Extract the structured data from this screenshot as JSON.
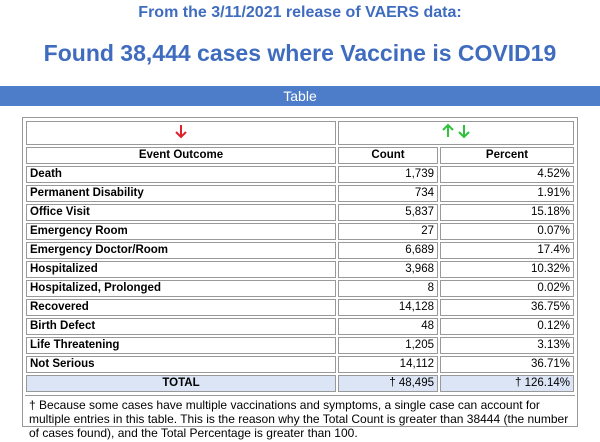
{
  "header": {
    "release": "From the 3/11/2021 release of VAERS data:",
    "title": "Found 38,444 cases where Vaccine is COVID19"
  },
  "section": "Table",
  "table": {
    "columns": [
      "Event Outcome",
      "Count",
      "Percent"
    ],
    "rows": [
      [
        "Death",
        "1,739",
        "4.52%"
      ],
      [
        "Permanent Disability",
        "734",
        "1.91%"
      ],
      [
        "Office Visit",
        "5,837",
        "15.18%"
      ],
      [
        "Emergency Room",
        "27",
        "0.07%"
      ],
      [
        "Emergency Doctor/Room",
        "6,689",
        "17.4%"
      ],
      [
        "Hospitalized",
        "3,968",
        "10.32%"
      ],
      [
        "Hospitalized, Prolonged",
        "8",
        "0.02%"
      ],
      [
        "Recovered",
        "14,128",
        "36.75%"
      ],
      [
        "Birth Defect",
        "48",
        "0.12%"
      ],
      [
        "Life Threatening",
        "1,205",
        "3.13%"
      ],
      [
        "Not Serious",
        "14,112",
        "36.71%"
      ]
    ],
    "total": [
      "TOTAL",
      "† 48,495",
      "† 126.14%"
    ],
    "footnote": "† Because some cases have multiple vaccinations and symptoms, a single case can account for multiple entries in this table. This is the reason why the Total Count is greater than 38444 (the number of cases found), and the Total Percentage is greater than 100."
  }
}
